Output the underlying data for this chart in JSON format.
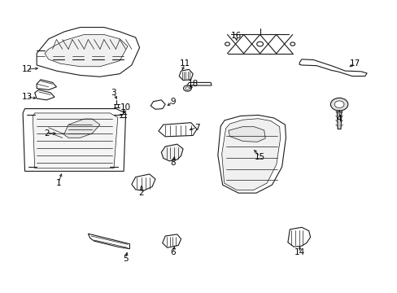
{
  "background_color": "#ffffff",
  "line_color": "#1a1a1a",
  "fig_width": 4.89,
  "fig_height": 3.6,
  "dpi": 100,
  "labels": [
    {
      "num": "1",
      "xt": 0.145,
      "yt": 0.375,
      "xa": 0.155,
      "ya": 0.415
    },
    {
      "num": "2",
      "xt": 0.115,
      "yt": 0.545,
      "xa": 0.145,
      "ya": 0.545
    },
    {
      "num": "2",
      "xt": 0.355,
      "yt": 0.34,
      "xa": 0.355,
      "ya": 0.375
    },
    {
      "num": "3",
      "xt": 0.285,
      "yt": 0.685,
      "xa": 0.295,
      "ya": 0.655
    },
    {
      "num": "4",
      "xt": 0.855,
      "yt": 0.595,
      "xa": 0.855,
      "ya": 0.635
    },
    {
      "num": "5",
      "xt": 0.315,
      "yt": 0.115,
      "xa": 0.32,
      "ya": 0.145
    },
    {
      "num": "6",
      "xt": 0.435,
      "yt": 0.135,
      "xa": 0.44,
      "ya": 0.165
    },
    {
      "num": "7",
      "xt": 0.495,
      "yt": 0.565,
      "xa": 0.47,
      "ya": 0.555
    },
    {
      "num": "8",
      "xt": 0.435,
      "yt": 0.445,
      "xa": 0.44,
      "ya": 0.475
    },
    {
      "num": "9",
      "xt": 0.435,
      "yt": 0.655,
      "xa": 0.415,
      "ya": 0.635
    },
    {
      "num": "10",
      "xt": 0.315,
      "yt": 0.635,
      "xa": 0.31,
      "ya": 0.605
    },
    {
      "num": "11",
      "xt": 0.465,
      "yt": 0.785,
      "xa": 0.455,
      "ya": 0.755
    },
    {
      "num": "12",
      "xt": 0.065,
      "yt": 0.765,
      "xa": 0.1,
      "ya": 0.77
    },
    {
      "num": "13",
      "xt": 0.065,
      "yt": 0.67,
      "xa": 0.095,
      "ya": 0.665
    },
    {
      "num": "14",
      "xt": 0.755,
      "yt": 0.135,
      "xa": 0.755,
      "ya": 0.165
    },
    {
      "num": "15",
      "xt": 0.655,
      "yt": 0.465,
      "xa": 0.635,
      "ya": 0.495
    },
    {
      "num": "16",
      "xt": 0.595,
      "yt": 0.88,
      "xa": 0.595,
      "ya": 0.855
    },
    {
      "num": "17",
      "xt": 0.895,
      "yt": 0.785,
      "xa": 0.875,
      "ya": 0.77
    },
    {
      "num": "18",
      "xt": 0.485,
      "yt": 0.715,
      "xa": 0.475,
      "ya": 0.69
    }
  ]
}
